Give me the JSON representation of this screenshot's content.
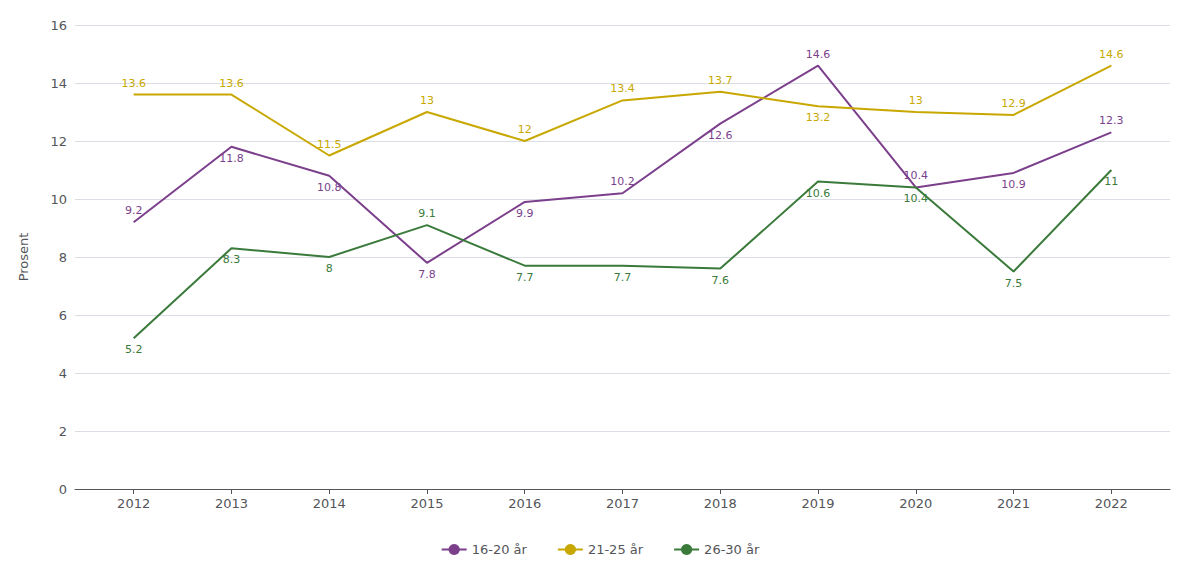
{
  "chart_data": {
    "type": "line",
    "x": [
      2012,
      2013,
      2014,
      2015,
      2016,
      2017,
      2018,
      2019,
      2020,
      2021,
      2022
    ],
    "xlim": [
      2011.4,
      2022.6
    ],
    "xticks": [
      2012,
      2013,
      2014,
      2015,
      2016,
      2017,
      2018,
      2019,
      2020,
      2021,
      2022
    ],
    "ylabel": "Prosent",
    "ylim": [
      0,
      16
    ],
    "yticks": [
      0,
      2,
      4,
      6,
      8,
      10,
      12,
      14,
      16
    ],
    "grid": true,
    "legend": "bottom",
    "data_labels": true,
    "series": [
      {
        "name": "16-20 år",
        "color": "#7b3f8c",
        "values": [
          9.2,
          11.8,
          10.8,
          7.8,
          9.9,
          10.2,
          12.6,
          14.6,
          10.4,
          10.9,
          12.3
        ]
      },
      {
        "name": "21-25 år",
        "color": "#c8a800",
        "values": [
          13.6,
          13.6,
          11.5,
          13,
          12,
          13.4,
          13.7,
          13.2,
          13,
          12.9,
          14.6
        ]
      },
      {
        "name": "26-30 år",
        "color": "#3a7a3a",
        "values": [
          5.2,
          8.3,
          8,
          9.1,
          7.7,
          7.7,
          7.6,
          10.6,
          10.4,
          7.5,
          11
        ]
      }
    ]
  }
}
